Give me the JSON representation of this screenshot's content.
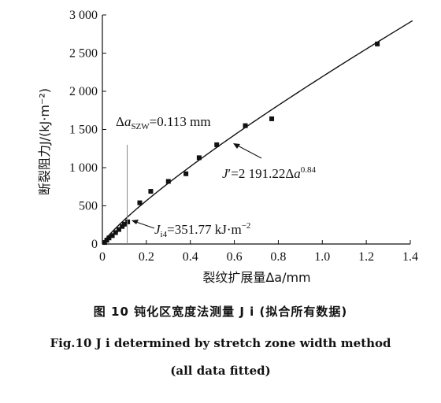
{
  "chart_data": {
    "type": "scatter",
    "xlabel": "裂纹扩展量Δa/mm",
    "ylabel": "断裂阻力J/(kJ·m⁻²)",
    "xlim": [
      0,
      1.4
    ],
    "ylim": [
      0,
      3000
    ],
    "x_ticks": [
      "0",
      "0.2",
      "0.4",
      "0.6",
      "0.8",
      "1.0",
      "1.2",
      "1.4"
    ],
    "y_ticks": [
      "0",
      "500",
      "1 000",
      "1 500",
      "2 000",
      "2 500",
      "3 000"
    ],
    "grid": false,
    "points": [
      {
        "x": 0.01,
        "y": 20
      },
      {
        "x": 0.02,
        "y": 50
      },
      {
        "x": 0.03,
        "y": 80
      },
      {
        "x": 0.045,
        "y": 110
      },
      {
        "x": 0.06,
        "y": 150
      },
      {
        "x": 0.075,
        "y": 190
      },
      {
        "x": 0.09,
        "y": 230
      },
      {
        "x": 0.1,
        "y": 260
      },
      {
        "x": 0.115,
        "y": 290
      },
      {
        "x": 0.17,
        "y": 540
      },
      {
        "x": 0.22,
        "y": 690
      },
      {
        "x": 0.3,
        "y": 820
      },
      {
        "x": 0.38,
        "y": 920
      },
      {
        "x": 0.44,
        "y": 1130
      },
      {
        "x": 0.52,
        "y": 1300
      },
      {
        "x": 0.65,
        "y": 1550
      },
      {
        "x": 0.77,
        "y": 1640
      },
      {
        "x": 1.25,
        "y": 2620
      }
    ],
    "fit_curve": {
      "coefficient": 2191.22,
      "exponent": 0.84,
      "x_range": [
        0,
        1.41
      ]
    },
    "szw_line": {
      "x": 0.113,
      "y_top": 1300
    },
    "annotations": {
      "szw": "Δa_SZW=0.113 mm",
      "fit": "J′=2 191.22Δa^0.84",
      "ji": "J_i4=351.77 kJ·m⁻²"
    }
  },
  "caption": {
    "cn": "图 10   钝化区宽度法测量 J i (拟合所有数据)",
    "en_line1": "Fig.10   J i determined by stretch zone width method",
    "en_line2": "(all data fitted)"
  }
}
